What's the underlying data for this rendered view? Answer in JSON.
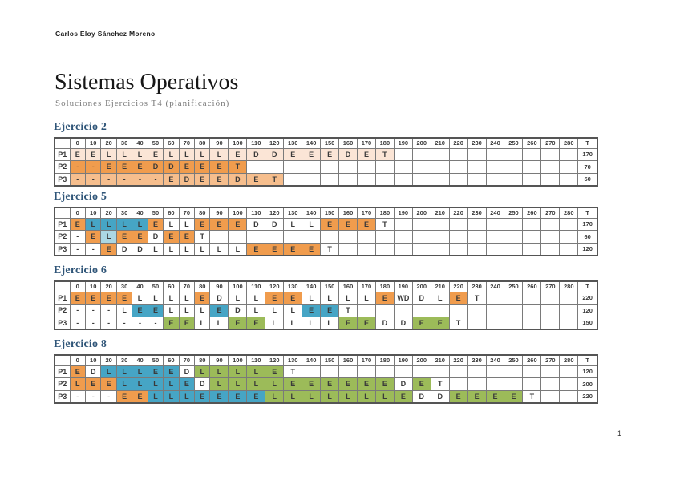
{
  "page": {
    "author": "Carlos Eloy Sánchez Moreno",
    "title": "Sistemas Operativos",
    "subtitle": "Soluciones Ejercicios T4 (planificación)",
    "page_number": "1"
  },
  "colors": {
    "w": "#FFFFFF",
    "o": "#F09C4D",
    "ol": "#F6BE8D",
    "p": "#FBE5D6",
    "t": "#46A5C5",
    "tl": "#ABD7E4",
    "g": "#9CBB59"
  },
  "time_headers": [
    "0",
    "10",
    "20",
    "30",
    "40",
    "50",
    "60",
    "70",
    "80",
    "90",
    "100",
    "110",
    "120",
    "130",
    "140",
    "150",
    "160",
    "170",
    "180",
    "190",
    "200",
    "210",
    "220",
    "230",
    "240",
    "250",
    "260",
    "270",
    "280"
  ],
  "total_header": "T",
  "num_time_slots": 29,
  "exercises": [
    {
      "heading": "Ejercicio 2",
      "rows": [
        {
          "label": "P1",
          "total": "170",
          "cells": [
            [
              "E",
              "p"
            ],
            [
              "E",
              "p"
            ],
            [
              "L",
              "p"
            ],
            [
              "L",
              "p"
            ],
            [
              "L",
              "p"
            ],
            [
              "E",
              "p"
            ],
            [
              "L",
              "p"
            ],
            [
              "L",
              "p"
            ],
            [
              "L",
              "p"
            ],
            [
              "L",
              "p"
            ],
            [
              "E",
              "p"
            ],
            [
              "D",
              "p"
            ],
            [
              "D",
              "p"
            ],
            [
              "E",
              "p"
            ],
            [
              "E",
              "p"
            ],
            [
              "E",
              "p"
            ],
            [
              "D",
              "p"
            ],
            [
              "E",
              "p"
            ],
            [
              "T",
              "p"
            ]
          ]
        },
        {
          "label": "P2",
          "total": "70",
          "cells": [
            [
              "-",
              "o"
            ],
            [
              "-",
              "o"
            ],
            [
              "E",
              "o"
            ],
            [
              "E",
              "o"
            ],
            [
              "E",
              "o"
            ],
            [
              "D",
              "o"
            ],
            [
              "D",
              "o"
            ],
            [
              "E",
              "o"
            ],
            [
              "E",
              "o"
            ],
            [
              "E",
              "o"
            ],
            [
              "T",
              "o"
            ]
          ]
        },
        {
          "label": "P3",
          "total": "50",
          "cells": [
            [
              "-",
              "ol"
            ],
            [
              "-",
              "ol"
            ],
            [
              "-",
              "ol"
            ],
            [
              "-",
              "ol"
            ],
            [
              "-",
              "ol"
            ],
            [
              "-",
              "ol"
            ],
            [
              "E",
              "ol"
            ],
            [
              "D",
              "ol"
            ],
            [
              "E",
              "ol"
            ],
            [
              "E",
              "ol"
            ],
            [
              "D",
              "ol"
            ],
            [
              "E",
              "ol"
            ],
            [
              "T",
              "ol"
            ]
          ]
        }
      ]
    },
    {
      "heading": "Ejercicio 5",
      "rows": [
        {
          "label": "P1",
          "total": "170",
          "cells": [
            [
              "E",
              "o"
            ],
            [
              "L",
              "t"
            ],
            [
              "L",
              "t"
            ],
            [
              "L",
              "t"
            ],
            [
              "L",
              "t"
            ],
            [
              "E",
              "o"
            ],
            [
              "L",
              "w"
            ],
            [
              "L",
              "w"
            ],
            [
              "E",
              "o"
            ],
            [
              "E",
              "o"
            ],
            [
              "E",
              "o"
            ],
            [
              "D",
              "w"
            ],
            [
              "D",
              "w"
            ],
            [
              "L",
              "w"
            ],
            [
              "L",
              "w"
            ],
            [
              "E",
              "o"
            ],
            [
              "E",
              "o"
            ],
            [
              "E",
              "o"
            ],
            [
              "T",
              "w"
            ]
          ]
        },
        {
          "label": "P2",
          "total": "60",
          "cells": [
            [
              "-",
              "w"
            ],
            [
              "E",
              "o"
            ],
            [
              "L",
              "tl"
            ],
            [
              "E",
              "o"
            ],
            [
              "E",
              "o"
            ],
            [
              "D",
              "w"
            ],
            [
              "E",
              "o"
            ],
            [
              "E",
              "o"
            ],
            [
              "T",
              "w"
            ]
          ]
        },
        {
          "label": "P3",
          "total": "120",
          "cells": [
            [
              "-",
              "w"
            ],
            [
              "-",
              "w"
            ],
            [
              "E",
              "o"
            ],
            [
              "D",
              "w"
            ],
            [
              "D",
              "w"
            ],
            [
              "L",
              "w"
            ],
            [
              "L",
              "w"
            ],
            [
              "L",
              "w"
            ],
            [
              "L",
              "w"
            ],
            [
              "L",
              "w"
            ],
            [
              "L",
              "w"
            ],
            [
              "E",
              "o"
            ],
            [
              "E",
              "o"
            ],
            [
              "E",
              "o"
            ],
            [
              "E",
              "o"
            ],
            [
              "T",
              "w"
            ]
          ]
        }
      ]
    },
    {
      "heading": "Ejercicio 6",
      "rows": [
        {
          "label": "P1",
          "total": "220",
          "cells": [
            [
              "E",
              "o"
            ],
            [
              "E",
              "o"
            ],
            [
              "E",
              "o"
            ],
            [
              "E",
              "o"
            ],
            [
              "L",
              "w"
            ],
            [
              "L",
              "w"
            ],
            [
              "L",
              "w"
            ],
            [
              "L",
              "w"
            ],
            [
              "E",
              "o"
            ],
            [
              "D",
              "w"
            ],
            [
              "L",
              "w"
            ],
            [
              "L",
              "w"
            ],
            [
              "E",
              "o"
            ],
            [
              "E",
              "o"
            ],
            [
              "L",
              "w"
            ],
            [
              "L",
              "w"
            ],
            [
              "L",
              "w"
            ],
            [
              "L",
              "w"
            ],
            [
              "E",
              "o"
            ],
            [
              "WD",
              "w"
            ],
            [
              "D",
              "w"
            ],
            [
              "L",
              "w"
            ],
            [
              "E",
              "o"
            ],
            [
              "T",
              "w"
            ]
          ]
        },
        {
          "label": "P2",
          "total": "120",
          "cells": [
            [
              "-",
              "w"
            ],
            [
              "-",
              "w"
            ],
            [
              "-",
              "w"
            ],
            [
              "L",
              "w"
            ],
            [
              "E",
              "t"
            ],
            [
              "E",
              "t"
            ],
            [
              "L",
              "w"
            ],
            [
              "L",
              "w"
            ],
            [
              "L",
              "w"
            ],
            [
              "E",
              "t"
            ],
            [
              "D",
              "w"
            ],
            [
              "L",
              "w"
            ],
            [
              "L",
              "w"
            ],
            [
              "L",
              "w"
            ],
            [
              "E",
              "t"
            ],
            [
              "E",
              "t"
            ],
            [
              "T",
              "w"
            ]
          ]
        },
        {
          "label": "P3",
          "total": "150",
          "cells": [
            [
              "-",
              "w"
            ],
            [
              "-",
              "w"
            ],
            [
              "-",
              "w"
            ],
            [
              "-",
              "w"
            ],
            [
              "-",
              "w"
            ],
            [
              "-",
              "w"
            ],
            [
              "E",
              "g"
            ],
            [
              "E",
              "g"
            ],
            [
              "L",
              "w"
            ],
            [
              "L",
              "w"
            ],
            [
              "E",
              "g"
            ],
            [
              "E",
              "g"
            ],
            [
              "L",
              "w"
            ],
            [
              "L",
              "w"
            ],
            [
              "L",
              "w"
            ],
            [
              "L",
              "w"
            ],
            [
              "E",
              "g"
            ],
            [
              "E",
              "g"
            ],
            [
              "D",
              "w"
            ],
            [
              "D",
              "w"
            ],
            [
              "E",
              "g"
            ],
            [
              "E",
              "g"
            ],
            [
              "T",
              "w"
            ]
          ]
        }
      ]
    },
    {
      "heading": "Ejercicio 8",
      "rows": [
        {
          "label": "P1",
          "total": "120",
          "cells": [
            [
              "E",
              "o"
            ],
            [
              "D",
              "w"
            ],
            [
              "L",
              "t"
            ],
            [
              "L",
              "t"
            ],
            [
              "L",
              "t"
            ],
            [
              "E",
              "t"
            ],
            [
              "E",
              "t"
            ],
            [
              "D",
              "w"
            ],
            [
              "L",
              "g"
            ],
            [
              "L",
              "g"
            ],
            [
              "L",
              "g"
            ],
            [
              "L",
              "g"
            ],
            [
              "E",
              "g"
            ],
            [
              "T",
              "w"
            ]
          ]
        },
        {
          "label": "P2",
          "total": "200",
          "cells": [
            [
              "L",
              "o"
            ],
            [
              "E",
              "o"
            ],
            [
              "E",
              "o"
            ],
            [
              "L",
              "t"
            ],
            [
              "L",
              "t"
            ],
            [
              "L",
              "t"
            ],
            [
              "L",
              "t"
            ],
            [
              "E",
              "t"
            ],
            [
              "D",
              "w"
            ],
            [
              "L",
              "g"
            ],
            [
              "L",
              "g"
            ],
            [
              "L",
              "g"
            ],
            [
              "L",
              "g"
            ],
            [
              "E",
              "g"
            ],
            [
              "E",
              "g"
            ],
            [
              "E",
              "g"
            ],
            [
              "E",
              "g"
            ],
            [
              "E",
              "g"
            ],
            [
              "E",
              "g"
            ],
            [
              "D",
              "w"
            ],
            [
              "E",
              "g"
            ],
            [
              "T",
              "w"
            ]
          ]
        },
        {
          "label": "P3",
          "total": "220",
          "cells": [
            [
              "-",
              "w"
            ],
            [
              "-",
              "w"
            ],
            [
              "-",
              "w"
            ],
            [
              "E",
              "o"
            ],
            [
              "E",
              "o"
            ],
            [
              "L",
              "t"
            ],
            [
              "L",
              "t"
            ],
            [
              "L",
              "t"
            ],
            [
              "E",
              "t"
            ],
            [
              "E",
              "t"
            ],
            [
              "E",
              "t"
            ],
            [
              "E",
              "t"
            ],
            [
              "L",
              "g"
            ],
            [
              "L",
              "g"
            ],
            [
              "L",
              "g"
            ],
            [
              "L",
              "g"
            ],
            [
              "L",
              "g"
            ],
            [
              "L",
              "g"
            ],
            [
              "L",
              "g"
            ],
            [
              "E",
              "g"
            ],
            [
              "D",
              "w"
            ],
            [
              "D",
              "w"
            ],
            [
              "E",
              "g"
            ],
            [
              "E",
              "g"
            ],
            [
              "E",
              "g"
            ],
            [
              "E",
              "g"
            ],
            [
              "T",
              "w"
            ]
          ]
        }
      ]
    }
  ]
}
